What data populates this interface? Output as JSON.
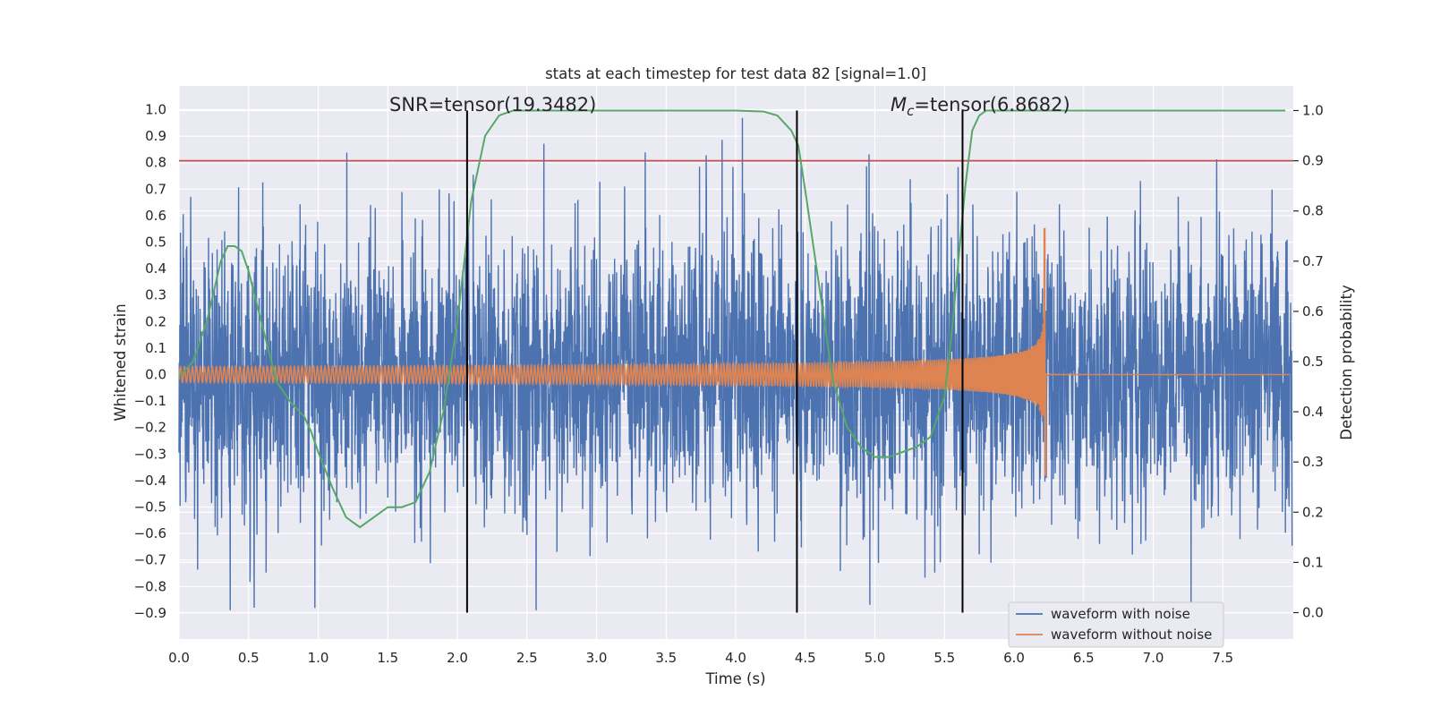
{
  "chart_data": {
    "type": "line",
    "title": "stats at each timestep for test data 82 [signal=1.0]",
    "xlabel": "Time (s)",
    "ylabel": "Whitened strain",
    "y2label": "Detection probability",
    "xlim": [
      0.0,
      8.0
    ],
    "ylim": [
      -1.0,
      1.05
    ],
    "y2lim": [
      -0.05,
      1.05
    ],
    "x_ticks": [
      "0.0",
      "0.5",
      "1.0",
      "1.5",
      "2.0",
      "2.5",
      "3.0",
      "3.5",
      "4.0",
      "4.5",
      "5.0",
      "5.5",
      "6.0",
      "6.5",
      "7.0",
      "7.5"
    ],
    "y_ticks": [
      "1.0",
      "0.9",
      "0.8",
      "0.7",
      "0.6",
      "0.5",
      "0.4",
      "0.3",
      "0.2",
      "0.1",
      "0.0",
      "−0.1",
      "−0.2",
      "−0.3",
      "−0.4",
      "−0.5",
      "−0.6",
      "−0.7",
      "−0.8",
      "−0.9"
    ],
    "y2_ticks": [
      "1.0",
      "0.9",
      "0.8",
      "0.7",
      "0.6",
      "0.5",
      "0.4",
      "0.3",
      "0.2",
      "0.1",
      "0.0"
    ],
    "grid": true,
    "legend_position": "lower-right",
    "series": [
      {
        "name": "waveform with noise",
        "color": "#4c72b0",
        "axis": "left",
        "noise_amplitude": 0.25,
        "peak_positive": 1.0,
        "peak_negative": -0.89
      },
      {
        "name": "waveform without noise",
        "color": "#dd8452",
        "axis": "left",
        "chirp_start_amplitude": 0.03,
        "merger_time": 6.22,
        "merger_peak": 0.55,
        "merger_trough": -0.38
      }
    ],
    "detection_probability": {
      "color": "#55a868",
      "axis": "right",
      "x": [
        0.0,
        0.1,
        0.2,
        0.3,
        0.35,
        0.4,
        0.45,
        0.5,
        0.6,
        0.7,
        0.8,
        0.9,
        0.95,
        1.0,
        1.1,
        1.2,
        1.3,
        1.4,
        1.5,
        1.6,
        1.7,
        1.8,
        1.9,
        2.0,
        2.1,
        2.2,
        2.3,
        2.4,
        2.6,
        3.0,
        3.5,
        4.0,
        4.2,
        4.3,
        4.4,
        4.45,
        4.5,
        4.6,
        4.7,
        4.8,
        4.9,
        5.0,
        5.1,
        5.2,
        5.3,
        5.4,
        5.5,
        5.55,
        5.6,
        5.65,
        5.7,
        5.75,
        5.8,
        5.9,
        6.0,
        6.5,
        7.0,
        7.5,
        7.95
      ],
      "y": [
        0.47,
        0.5,
        0.58,
        0.7,
        0.73,
        0.73,
        0.72,
        0.68,
        0.57,
        0.46,
        0.42,
        0.39,
        0.36,
        0.32,
        0.25,
        0.19,
        0.17,
        0.19,
        0.21,
        0.21,
        0.22,
        0.28,
        0.4,
        0.58,
        0.82,
        0.95,
        0.99,
        1.0,
        1.0,
        1.0,
        1.0,
        1.0,
        0.998,
        0.99,
        0.96,
        0.93,
        0.84,
        0.65,
        0.46,
        0.37,
        0.33,
        0.31,
        0.31,
        0.32,
        0.33,
        0.35,
        0.43,
        0.55,
        0.7,
        0.85,
        0.96,
        0.99,
        1.0,
        1.0,
        1.0,
        1.0,
        1.0,
        1.0,
        1.0
      ]
    },
    "threshold": {
      "value": 0.9,
      "axis": "right",
      "color": "#c44e52"
    },
    "vertical_lines": [
      2.07,
      4.44,
      5.63
    ],
    "annotations": {
      "snr": "SNR=tensor(19.3482)",
      "mc_symbol": "M",
      "mc_subscript": "c",
      "mc_value": "=tensor(6.8682)"
    }
  }
}
